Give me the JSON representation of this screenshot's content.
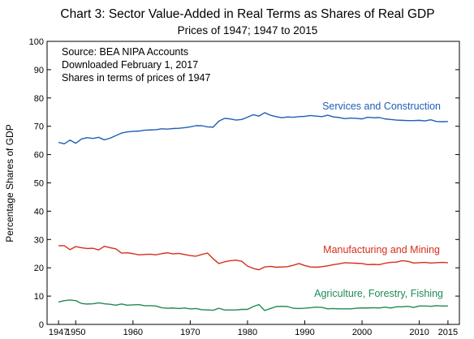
{
  "chart_data": {
    "type": "line",
    "title": "Chart 3:  Sector Value-Added in Real Terms as Shares of Real GDP",
    "subtitle": "Prices of 1947;  1947 to 2015",
    "ylabel": "Percentage Shares of GDP",
    "xlim": [
      1945,
      2017
    ],
    "ylim": [
      0,
      100
    ],
    "xticks": [
      1947,
      1950,
      1960,
      1970,
      1980,
      1990,
      2000,
      2010,
      2015
    ],
    "yticks": [
      0,
      10,
      20,
      30,
      40,
      50,
      60,
      70,
      80,
      90,
      100
    ],
    "grid": false,
    "annotations": [
      "Source: BEA NIPA Accounts",
      "Downloaded February 1, 2017",
      "Shares in terms of prices of 1947"
    ],
    "x": [
      1947,
      1948,
      1949,
      1950,
      1951,
      1952,
      1953,
      1954,
      1955,
      1956,
      1957,
      1958,
      1959,
      1960,
      1961,
      1962,
      1963,
      1964,
      1965,
      1966,
      1967,
      1968,
      1969,
      1970,
      1971,
      1972,
      1973,
      1974,
      1975,
      1976,
      1977,
      1978,
      1979,
      1980,
      1981,
      1982,
      1983,
      1984,
      1985,
      1986,
      1987,
      1988,
      1989,
      1990,
      1991,
      1992,
      1993,
      1994,
      1995,
      1996,
      1997,
      1998,
      1999,
      2000,
      2001,
      2002,
      2003,
      2004,
      2005,
      2006,
      2007,
      2008,
      2009,
      2010,
      2011,
      2012,
      2013,
      2014,
      2015
    ],
    "series": [
      {
        "name": "Services and Construction",
        "color": "#1f5fb4",
        "values": [
          64.3,
          63.8,
          65.1,
          64.0,
          65.5,
          66.0,
          65.7,
          66.1,
          65.2,
          65.8,
          66.7,
          67.6,
          68.0,
          68.2,
          68.3,
          68.6,
          68.7,
          68.8,
          69.1,
          69.0,
          69.2,
          69.3,
          69.5,
          69.8,
          70.2,
          70.2,
          69.8,
          69.7,
          71.8,
          72.8,
          72.6,
          72.2,
          72.4,
          73.2,
          74.1,
          73.6,
          74.8,
          73.9,
          73.4,
          73.0,
          73.3,
          73.2,
          73.4,
          73.5,
          73.8,
          73.6,
          73.4,
          73.9,
          73.3,
          73.1,
          72.7,
          72.9,
          72.8,
          72.6,
          73.2,
          73.0,
          73.1,
          72.6,
          72.4,
          72.2,
          72.1,
          72.0,
          72.0,
          72.1,
          71.9,
          72.3,
          71.7,
          71.6,
          71.7
        ]
      },
      {
        "name": "Manufacturing and Mining",
        "color": "#d42f1b",
        "values": [
          27.8,
          27.8,
          26.4,
          27.5,
          27.1,
          26.8,
          26.9,
          26.3,
          27.6,
          27.1,
          26.7,
          25.2,
          25.3,
          25.0,
          24.6,
          24.7,
          24.8,
          24.6,
          25.0,
          25.3,
          24.9,
          25.1,
          24.7,
          24.3,
          24.1,
          24.7,
          25.2,
          23.2,
          21.5,
          22.1,
          22.5,
          22.7,
          22.3,
          20.6,
          19.8,
          19.3,
          20.3,
          20.5,
          20.2,
          20.3,
          20.4,
          20.9,
          21.5,
          20.8,
          20.3,
          20.2,
          20.4,
          20.7,
          21.1,
          21.4,
          21.8,
          21.7,
          21.6,
          21.5,
          21.1,
          21.2,
          21.1,
          21.6,
          21.9,
          22.0,
          22.5,
          22.3,
          21.7,
          21.8,
          21.9,
          21.7,
          21.8,
          21.9,
          21.8
        ]
      },
      {
        "name": "Agriculture, Forestry, Fishing",
        "color": "#1f8a55",
        "values": [
          7.9,
          8.4,
          8.6,
          8.4,
          7.4,
          7.2,
          7.3,
          7.6,
          7.3,
          7.1,
          6.8,
          7.2,
          6.8,
          6.9,
          7.0,
          6.6,
          6.6,
          6.5,
          5.9,
          5.7,
          5.8,
          5.6,
          5.8,
          5.5,
          5.6,
          5.2,
          5.1,
          5.0,
          5.7,
          5.1,
          5.1,
          5.1,
          5.3,
          5.3,
          6.3,
          7.0,
          4.9,
          5.6,
          6.3,
          6.4,
          6.3,
          5.7,
          5.6,
          5.7,
          5.9,
          6.1,
          6.0,
          5.5,
          5.6,
          5.5,
          5.5,
          5.5,
          5.7,
          5.8,
          5.8,
          5.9,
          5.8,
          6.1,
          5.8,
          6.2,
          6.2,
          6.4,
          6.0,
          6.5,
          6.5,
          6.4,
          6.6,
          6.5,
          6.5
        ]
      }
    ]
  }
}
